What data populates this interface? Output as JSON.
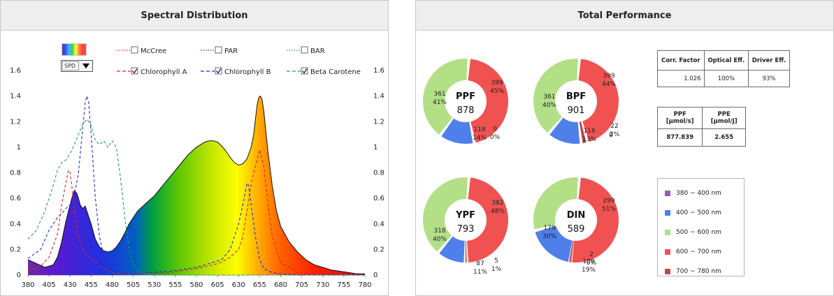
{
  "left_panel": {
    "title": "Spectral Distribution",
    "spd_select": "SPD",
    "legend": [
      {
        "label": "McCree",
        "checked": false,
        "color": "#e02020",
        "style": "dotted"
      },
      {
        "label": "PAR",
        "checked": false,
        "color": "#2020d0",
        "style": "dotted"
      },
      {
        "label": "BAR",
        "checked": false,
        "color": "#20a060",
        "style": "dotted"
      },
      {
        "label": "Chlorophyll A",
        "checked": true,
        "color": "#e02020",
        "style": "dashed"
      },
      {
        "label": "Chlorophyll B",
        "checked": true,
        "color": "#2030d0",
        "style": "dashed"
      },
      {
        "label": "Beta Carotene",
        "checked": true,
        "color": "#20a060",
        "style": "dashed"
      }
    ]
  },
  "chart_data": {
    "type": "area",
    "xlim": [
      380,
      780
    ],
    "ylim": [
      0,
      1.6
    ],
    "x_ticks": [
      "380",
      "405",
      "430",
      "455",
      "480",
      "505",
      "530",
      "555",
      "580",
      "605",
      "630",
      "655",
      "680",
      "705",
      "730",
      "755",
      "780"
    ],
    "y_ticks": [
      "0",
      "0.2",
      "0.4",
      "0.6",
      "0.8",
      "1",
      "1.2",
      "1.4",
      "1.6"
    ],
    "series": [
      {
        "name": "SPD",
        "x": [
          380,
          390,
          400,
          410,
          415,
          420,
          425,
          430,
          432,
          435,
          438,
          440,
          442,
          445,
          448,
          450,
          455,
          460,
          465,
          470,
          475,
          480,
          485,
          490,
          495,
          500,
          510,
          520,
          530,
          540,
          550,
          560,
          570,
          580,
          590,
          595,
          600,
          605,
          610,
          615,
          620,
          625,
          630,
          635,
          640,
          645,
          648,
          650,
          652,
          654,
          656,
          658,
          660,
          662,
          665,
          670,
          675,
          680,
          690,
          700,
          710,
          720,
          730,
          740,
          750,
          760,
          770,
          780
        ],
        "values": [
          0.12,
          0.09,
          0.06,
          0.08,
          0.14,
          0.26,
          0.42,
          0.55,
          0.6,
          0.66,
          0.64,
          0.6,
          0.55,
          0.52,
          0.54,
          0.5,
          0.4,
          0.28,
          0.22,
          0.19,
          0.18,
          0.19,
          0.22,
          0.27,
          0.33,
          0.4,
          0.5,
          0.56,
          0.62,
          0.7,
          0.78,
          0.86,
          0.94,
          1.0,
          1.04,
          1.05,
          1.05,
          1.04,
          1.01,
          0.97,
          0.92,
          0.88,
          0.86,
          0.87,
          0.91,
          1.0,
          1.1,
          1.22,
          1.33,
          1.39,
          1.4,
          1.37,
          1.28,
          1.15,
          0.96,
          0.7,
          0.5,
          0.38,
          0.26,
          0.18,
          0.12,
          0.08,
          0.06,
          0.04,
          0.03,
          0.02,
          0.01,
          0.01
        ]
      },
      {
        "name": "Chlorophyll A",
        "x": [
          380,
          395,
          405,
          415,
          420,
          425,
          428,
          430,
          432,
          435,
          440,
          445,
          450,
          455,
          460,
          470,
          480,
          500,
          550,
          580,
          600,
          610,
          620,
          630,
          635,
          640,
          645,
          650,
          655,
          660,
          665,
          670,
          680,
          700,
          720,
          780
        ],
        "values": [
          0.03,
          0.07,
          0.14,
          0.32,
          0.55,
          0.72,
          0.82,
          0.8,
          0.7,
          0.5,
          0.3,
          0.2,
          0.15,
          0.13,
          0.1,
          0.05,
          0.02,
          0.01,
          0.02,
          0.05,
          0.08,
          0.1,
          0.14,
          0.2,
          0.3,
          0.5,
          0.72,
          0.85,
          0.98,
          0.85,
          0.55,
          0.3,
          0.1,
          0.02,
          0.01,
          0.0
        ]
      },
      {
        "name": "Chlorophyll B",
        "x": [
          380,
          395,
          405,
          415,
          420,
          425,
          430,
          435,
          440,
          445,
          448,
          450,
          452,
          455,
          458,
          460,
          465,
          470,
          475,
          480,
          490,
          500,
          550,
          580,
          600,
          610,
          620,
          630,
          635,
          640,
          642,
          645,
          650,
          655,
          660,
          670,
          680,
          700,
          780
        ],
        "values": [
          0.13,
          0.2,
          0.35,
          0.45,
          0.48,
          0.52,
          0.55,
          0.62,
          0.8,
          1.15,
          1.35,
          1.4,
          1.35,
          1.1,
          0.8,
          0.6,
          0.3,
          0.15,
          0.07,
          0.04,
          0.02,
          0.01,
          0.03,
          0.06,
          0.1,
          0.12,
          0.2,
          0.4,
          0.55,
          0.72,
          0.7,
          0.55,
          0.3,
          0.12,
          0.05,
          0.02,
          0.01,
          0.0,
          0.0
        ]
      },
      {
        "name": "Beta Carotene",
        "x": [
          380,
          390,
          400,
          410,
          415,
          420,
          425,
          430,
          435,
          440,
          445,
          450,
          455,
          460,
          465,
          470,
          475,
          480,
          485,
          490,
          495,
          500,
          505,
          510,
          520,
          530,
          780
        ],
        "values": [
          0.28,
          0.35,
          0.5,
          0.7,
          0.82,
          0.88,
          0.9,
          0.95,
          1.02,
          1.1,
          1.18,
          1.22,
          1.17,
          1.05,
          1.02,
          1.05,
          1.0,
          1.05,
          1.0,
          0.75,
          0.45,
          0.2,
          0.08,
          0.03,
          0.01,
          0.0,
          0.0
        ]
      }
    ]
  },
  "right_panel": {
    "title": "Total Performance",
    "donuts": [
      {
        "name": "PPF",
        "total": "878",
        "segments": [
          {
            "label": "399",
            "pct": "45%",
            "value": 399,
            "color": "#f05252"
          },
          {
            "label": "0",
            "pct": "0%",
            "value": 0,
            "color": "#c04848"
          },
          {
            "label": "118",
            "pct": "14%",
            "value": 118,
            "color": "#4e7fea"
          },
          {
            "label": "361",
            "pct": "41%",
            "value": 361,
            "color": "#b3df86"
          }
        ]
      },
      {
        "name": "BPF",
        "total": "901",
        "segments": [
          {
            "label": "399",
            "pct": "44%",
            "value": 399,
            "color": "#f05252"
          },
          {
            "label": "22",
            "pct": "2%",
            "value": 22,
            "color": "#c04848"
          },
          {
            "label": "118",
            "pct": "13%",
            "value": 118,
            "color": "#4e7fea"
          },
          {
            "label": "361",
            "pct": "40%",
            "value": 361,
            "color": "#b3df86"
          }
        ],
        "extra_label": "0"
      },
      {
        "name": "YPF",
        "total": "793",
        "segments": [
          {
            "label": "382",
            "pct": "48%",
            "value": 382,
            "color": "#f05252"
          },
          {
            "label": "5",
            "pct": "1%",
            "value": 5,
            "color": "#c04848"
          },
          {
            "label": "87",
            "pct": "11%",
            "value": 87,
            "color": "#4e7fea"
          },
          {
            "label": "318",
            "pct": "40%",
            "value": 318,
            "color": "#b3df86"
          }
        ]
      },
      {
        "name": "DIN",
        "total": "589",
        "segments": [
          {
            "label": "299",
            "pct": "51%",
            "value": 299,
            "color": "#f05252"
          },
          {
            "label": "2",
            "pct": "0%",
            "value": 2,
            "color": "#c04848"
          },
          {
            "label": "109",
            "pct": "19%",
            "value": 109,
            "color": "#4e7fea"
          },
          {
            "label": "179",
            "pct": "30%",
            "value": 179,
            "color": "#b3df86"
          }
        ]
      }
    ],
    "factors_table": {
      "headers": [
        "Corr. Factor",
        "Optical Eff.",
        "Driver Eff."
      ],
      "values": [
        "1.026",
        "100%",
        "93%"
      ]
    },
    "ppf_table": {
      "headers": [
        "PPF\n[μmol/s]",
        "PPE\n[μmol/J]"
      ],
      "header_lines": [
        [
          "PPF",
          "[μmol/s]"
        ],
        [
          "PPE",
          "[μmol/J]"
        ]
      ],
      "values": [
        "877.839",
        "2.655"
      ]
    },
    "legend": [
      {
        "label": "380 ~ 400 nm",
        "color": "#9b59b6"
      },
      {
        "label": "400 ~ 500 nm",
        "color": "#4e7fea"
      },
      {
        "label": "500 ~ 600 nm",
        "color": "#b3df86"
      },
      {
        "label": "600 ~ 700 nm",
        "color": "#f05252"
      },
      {
        "label": "700 ~ 780 nm",
        "color": "#c04848"
      }
    ]
  }
}
